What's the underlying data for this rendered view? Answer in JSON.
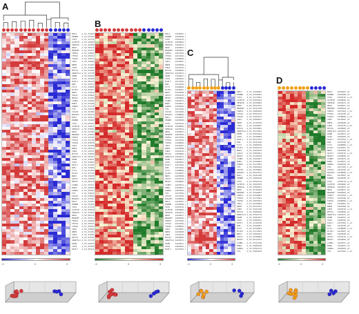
{
  "panels": [
    "A",
    "B",
    "C",
    "D"
  ],
  "colors": {
    "red": "#d43a3a",
    "blue": "#2a2ad4",
    "orange": "#f2a218",
    "green": "#1f7a2a",
    "grid_grey": "#9a9a9a"
  },
  "scale_ticks": [
    "-3",
    "0",
    "3"
  ],
  "gene_symbols": [
    "ENC1",
    "EDNRB",
    "TIE1",
    "OLFR78",
    "SEMA3G",
    "HRAS",
    "MRGPRF",
    "TRPV4",
    "TFPI2",
    "TOP2A",
    "CDK1",
    "RRM2",
    "CHD3",
    "MYO7A",
    "ANGPTL4",
    "PDPN",
    "CD34",
    "EGFL7",
    "KDR",
    "FLT1",
    "ELTD1",
    "NRP1",
    "SOX17",
    "MKI67",
    "CCNB1",
    "BUB1",
    "AURKA",
    "TTK",
    "CDC20",
    "NUSAP1"
  ],
  "probe_ids": [
    "A_51_P160287",
    "A_52_P329001",
    "A_51_P174561",
    "A_55_P203812",
    "A_51_P438002",
    "A_52_P011873",
    "A_51_P231190",
    "A_51_P406610",
    "A_52_P556712",
    "A_51_P301875",
    "A_55_P300251",
    "A_51_P118760"
  ],
  "probe_ids_short": [
    "1419587_at",
    "1426508_at",
    "1435476_a_at",
    "1450856_at",
    "1422631_at",
    "1418457_at",
    "1460302_at",
    "1437502_x_at",
    "1416156_at",
    "1448899_s_at"
  ]
}
